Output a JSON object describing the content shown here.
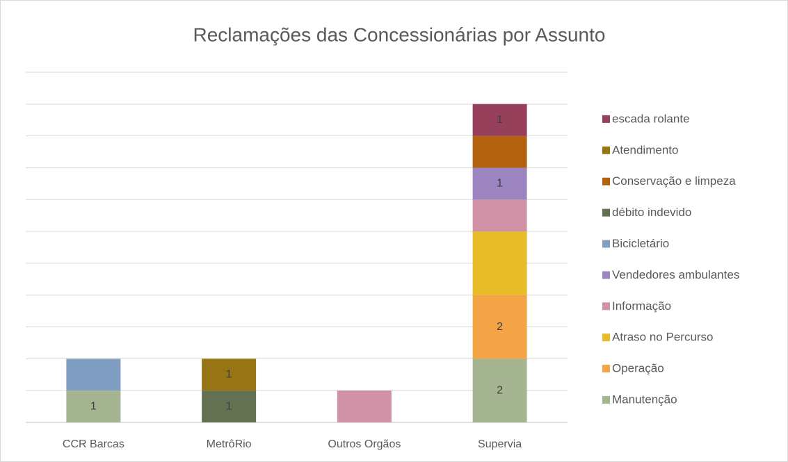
{
  "chart_data": {
    "type": "stacked_bar",
    "title": "Reclamações das Concessionárias por Assunto",
    "categories": [
      "CCR Barcas",
      "MetrôRio",
      "Outros Orgãos",
      "Supervia"
    ],
    "ylim": [
      0,
      11
    ],
    "yticks": [
      0,
      1,
      2,
      3,
      4,
      5,
      6,
      7,
      8,
      9,
      10,
      11
    ],
    "grid": true,
    "legend": "right",
    "series": [
      {
        "name": "Manutenção",
        "color": "#a5b592",
        "values": [
          1,
          null,
          null,
          2
        ],
        "value_labels": [
          "1",
          null,
          null,
          "2"
        ]
      },
      {
        "name": "Operação",
        "color": "#f3a447",
        "values": [
          null,
          null,
          null,
          2
        ],
        "value_labels": [
          null,
          null,
          null,
          "2"
        ]
      },
      {
        "name": "Atraso no Percurso",
        "color": "#e7bc29",
        "values": [
          null,
          null,
          null,
          2
        ],
        "value_labels": [
          null,
          null,
          null,
          null
        ]
      },
      {
        "name": "Informação",
        "color": "#d092a7",
        "values": [
          null,
          null,
          1,
          1
        ],
        "value_labels": [
          null,
          null,
          null,
          null
        ]
      },
      {
        "name": "Vendedores ambulantes",
        "color": "#9c85c0",
        "values": [
          null,
          null,
          null,
          1
        ],
        "value_labels": [
          null,
          null,
          null,
          "1"
        ]
      },
      {
        "name": "Bicicletário",
        "color": "#809ec2",
        "values": [
          1,
          null,
          null,
          null
        ],
        "value_labels": [
          null,
          null,
          null,
          null
        ]
      },
      {
        "name": "débito indevido",
        "color": "#637052",
        "values": [
          null,
          1,
          null,
          null
        ],
        "value_labels": [
          null,
          "1",
          null,
          null
        ]
      },
      {
        "name": "Conservação e limpeza",
        "color": "#b3620f",
        "values": [
          null,
          null,
          null,
          1
        ],
        "value_labels": [
          null,
          null,
          null,
          null
        ]
      },
      {
        "name": "Atendimento",
        "color": "#977414",
        "values": [
          null,
          1,
          null,
          null
        ],
        "value_labels": [
          null,
          "1",
          null,
          null
        ]
      },
      {
        "name": "escada rolante",
        "color": "#97405b",
        "values": [
          null,
          null,
          null,
          1
        ],
        "value_labels": [
          null,
          null,
          null,
          "1"
        ]
      }
    ]
  }
}
